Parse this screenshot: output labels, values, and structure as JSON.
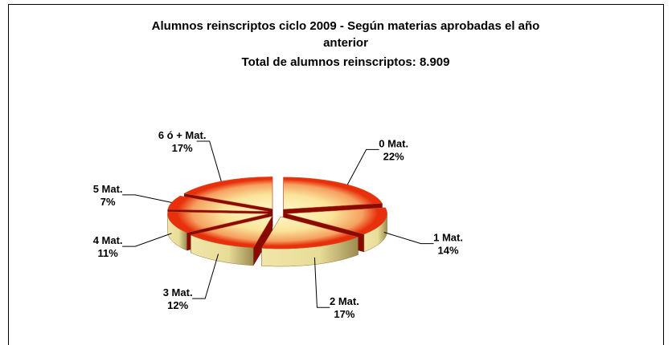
{
  "chart_data": {
    "type": "pie",
    "title": "Alumnos reinscriptos ciclo 2009 - Según materias aprobadas el año anterior",
    "subtitle": "Total de alumnos reinscriptos: 8.909",
    "categories": [
      "0 Mat.",
      "1 Mat.",
      "2 Mat.",
      "3 Mat.",
      "4 Mat.",
      "5 Mat.",
      "6 ó + Mat."
    ],
    "values": [
      22,
      14,
      17,
      12,
      11,
      7,
      17
    ],
    "value_labels": [
      "22%",
      "14%",
      "17%",
      "12%",
      "11%",
      "7%",
      "17%"
    ]
  }
}
